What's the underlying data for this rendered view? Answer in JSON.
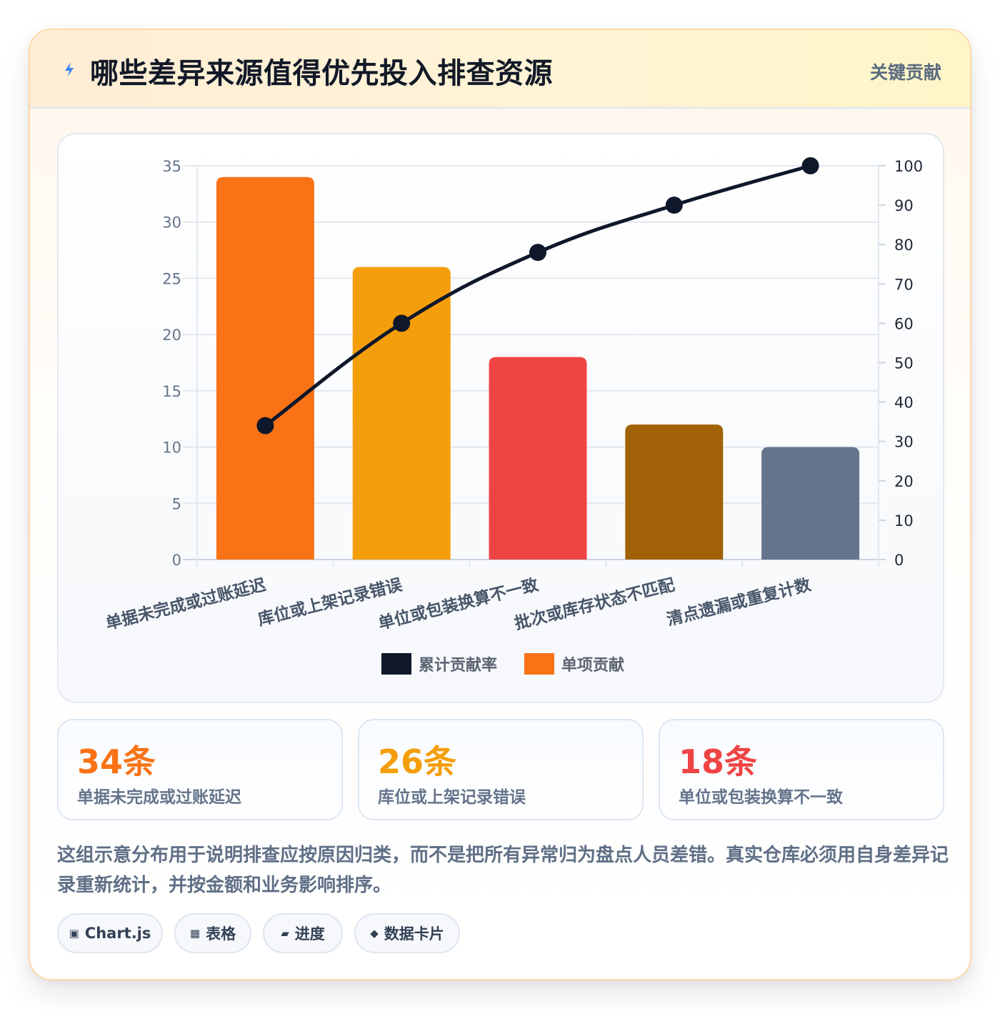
{
  "header": {
    "icon": "lightning-icon",
    "title": "哪些差异来源值得优先投入排查资源",
    "badge": "关键贡献"
  },
  "chart_data": {
    "type": "bar",
    "categories": [
      "单据未完成或过账延迟",
      "库位或上架记录错误",
      "单位或包装换算不一致",
      "批次或库存状态不匹配",
      "清点遗漏或重复计数"
    ],
    "series": [
      {
        "name": "单项贡献",
        "type": "bar",
        "axis": "left",
        "values": [
          34,
          26,
          18,
          12,
          10
        ],
        "colors": [
          "#f97316",
          "#f59e0b",
          "#ef4444",
          "#a16207",
          "#64748b"
        ]
      },
      {
        "name": "累计贡献率",
        "type": "line",
        "axis": "right",
        "values": [
          34,
          60,
          78,
          90,
          100
        ],
        "color": "#0f172a"
      }
    ],
    "y_left": {
      "min": 0,
      "max": 35,
      "step": 5,
      "ticks": [
        "0",
        "5",
        "10",
        "15",
        "20",
        "25",
        "30",
        "35"
      ]
    },
    "y_right": {
      "min": 0,
      "max": 100,
      "step": 10,
      "ticks": [
        "0",
        "10",
        "20",
        "30",
        "40",
        "50",
        "60",
        "70",
        "80",
        "90",
        "100"
      ]
    },
    "grid": true,
    "legend": {
      "position": "bottom",
      "items": [
        "累计贡献率",
        "单项贡献"
      ]
    },
    "title": "",
    "xlabel": "",
    "ylabel": ""
  },
  "stats": [
    {
      "value": "34条",
      "label": "单据未完成或过账延迟",
      "color": "#f97316"
    },
    {
      "value": "26条",
      "label": "库位或上架记录错误",
      "color": "#f59e0b"
    },
    {
      "value": "18条",
      "label": "单位或包装换算不一致",
      "color": "#ef4444"
    }
  ],
  "note": "这组示意分布用于说明排查应按原因归类，而不是把所有异常归为盘点人员差错。真实仓库必须用自身差异记录重新统计，并按金额和业务影响排序。",
  "tags": [
    {
      "icon": "▣",
      "label": "Chart.js"
    },
    {
      "icon": "▦",
      "label": "表格"
    },
    {
      "icon": "▰",
      "label": "进度"
    },
    {
      "icon": "◆",
      "label": "数据卡片"
    }
  ]
}
